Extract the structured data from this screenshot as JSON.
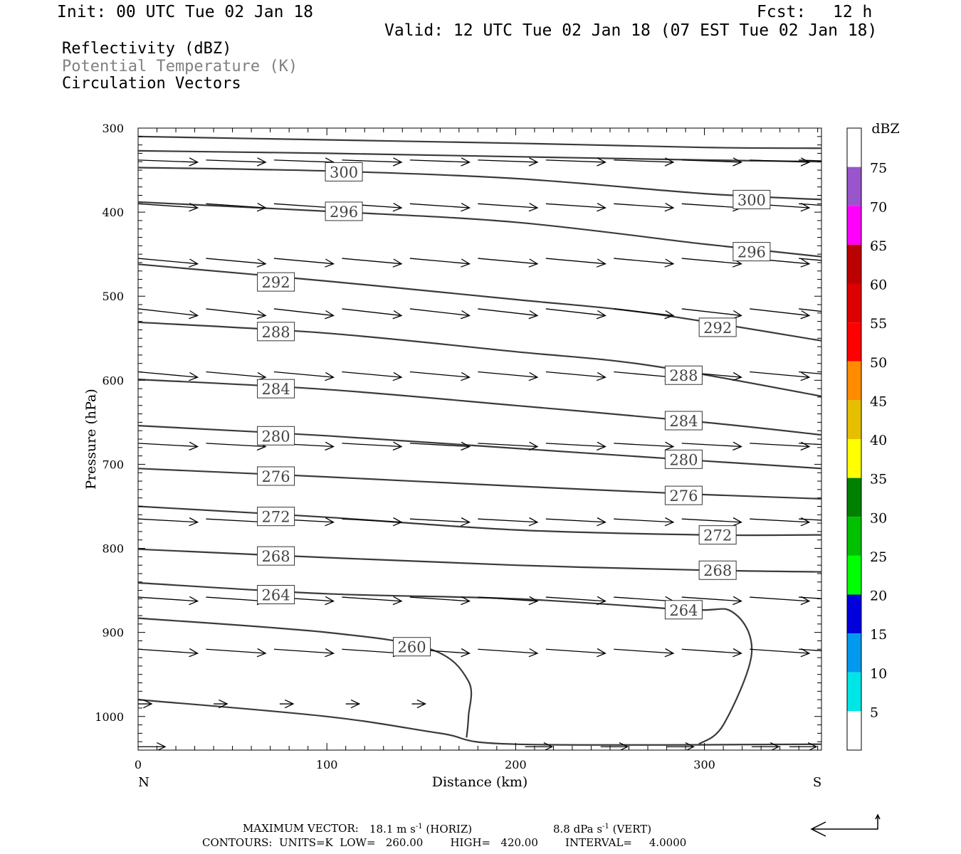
{
  "header": {
    "init": "Init: 00 UTC Tue 02 Jan 18",
    "fcst_label": "Fcst:",
    "fcst_value": "12 h",
    "valid": "Valid: 12 UTC Tue 02 Jan 18 (07 EST Tue 02 Jan 18)"
  },
  "legend": {
    "field1": "Reflectivity (dBZ)",
    "field2": "Potential Temperature (K)",
    "field3": "Circulation Vectors",
    "field2_color": "#808080"
  },
  "footer": {
    "max_vector_label": "MAXIMUM VECTOR:",
    "max_vector_horiz": "18.1 m s",
    "horiz_suffix": "(HORIZ)",
    "max_vector_vert": "8.8 dPa s",
    "vert_suffix": "(VERT)",
    "exponent": "-1",
    "contours": "CONTOURS:  UNITS=K  LOW=   260.00        HIGH=   420.00        INTERVAL=     4.0000"
  },
  "chart_data": {
    "type": "cross-section",
    "xlabel": "Distance (km)",
    "ylabel": "Pressure (hPa)",
    "xlim": [
      0,
      362
    ],
    "ylim": [
      1040,
      300
    ],
    "x_ticks": [
      0,
      100,
      200,
      300
    ],
    "y_ticks": [
      300,
      400,
      500,
      600,
      700,
      800,
      900,
      1000
    ],
    "left_end_label": "N",
    "right_end_label": "S",
    "colorbar": {
      "title": "dBZ",
      "levels": [
        5,
        10,
        15,
        20,
        25,
        30,
        35,
        40,
        45,
        50,
        55,
        60,
        65,
        70,
        75
      ],
      "colors": [
        "#ffffff",
        "#00e5e5",
        "#0099ee",
        "#0000dd",
        "#00ff00",
        "#00c000",
        "#008000",
        "#ffff00",
        "#e6bf00",
        "#ff8c00",
        "#ff0000",
        "#dd0000",
        "#bb0000",
        "#ff00ff",
        "#9955cc",
        "#ffffff"
      ]
    },
    "theta_contours": [
      {
        "value": 300,
        "points": [
          [
            0,
            310
          ],
          [
            100,
            314
          ],
          [
            200,
            318
          ],
          [
            300,
            323
          ],
          [
            362,
            324
          ]
        ]
      },
      {
        "value": 300,
        "points": [
          [
            0,
            327
          ],
          [
            100,
            330
          ],
          [
            200,
            334
          ],
          [
            300,
            338
          ],
          [
            362,
            340
          ]
        ]
      },
      {
        "value": 300,
        "label": "300",
        "label_at": [
          [
            109,
            352
          ],
          [
            325,
            385
          ]
        ],
        "points": [
          [
            0,
            347
          ],
          [
            100,
            351
          ],
          [
            200,
            360
          ],
          [
            300,
            378
          ],
          [
            362,
            385
          ]
        ]
      },
      {
        "value": 296,
        "label": "296",
        "label_at": [
          [
            109,
            399
          ],
          [
            325,
            447
          ]
        ],
        "points": [
          [
            0,
            388
          ],
          [
            100,
            399
          ],
          [
            200,
            412
          ],
          [
            300,
            438
          ],
          [
            362,
            453
          ]
        ]
      },
      {
        "value": 292,
        "label": "292",
        "label_at": [
          [
            73,
            483
          ],
          [
            307,
            537
          ]
        ],
        "points": [
          [
            0,
            462
          ],
          [
            100,
            482
          ],
          [
            200,
            504
          ],
          [
            270,
            520
          ],
          [
            362,
            553
          ]
        ]
      },
      {
        "value": 288,
        "label": "288",
        "label_at": [
          [
            73,
            542
          ],
          [
            289,
            594
          ]
        ],
        "points": [
          [
            0,
            531
          ],
          [
            100,
            544
          ],
          [
            200,
            566
          ],
          [
            270,
            582
          ],
          [
            362,
            619
          ]
        ]
      },
      {
        "value": 284,
        "label": "284",
        "label_at": [
          [
            73,
            610
          ],
          [
            289,
            648
          ]
        ],
        "points": [
          [
            0,
            599
          ],
          [
            100,
            611
          ],
          [
            200,
            630
          ],
          [
            300,
            650
          ],
          [
            362,
            665
          ]
        ]
      },
      {
        "value": 280,
        "label": "280",
        "label_at": [
          [
            73,
            666
          ],
          [
            289,
            694
          ]
        ],
        "points": [
          [
            0,
            654
          ],
          [
            100,
            666
          ],
          [
            200,
            681
          ],
          [
            300,
            696
          ],
          [
            362,
            705
          ]
        ]
      },
      {
        "value": 276,
        "label": "276",
        "label_at": [
          [
            73,
            714
          ],
          [
            289,
            737
          ]
        ],
        "points": [
          [
            0,
            705
          ],
          [
            100,
            715
          ],
          [
            200,
            726
          ],
          [
            300,
            736
          ],
          [
            362,
            741
          ]
        ]
      },
      {
        "value": 272,
        "label": "272",
        "label_at": [
          [
            73,
            762
          ],
          [
            307,
            784
          ]
        ],
        "points": [
          [
            0,
            750
          ],
          [
            100,
            763
          ],
          [
            200,
            778
          ],
          [
            300,
            784
          ],
          [
            362,
            784
          ]
        ]
      },
      {
        "value": 268,
        "label": "268",
        "label_at": [
          [
            73,
            809
          ],
          [
            307,
            826
          ]
        ],
        "points": [
          [
            0,
            801
          ],
          [
            100,
            811
          ],
          [
            200,
            820
          ],
          [
            300,
            826
          ],
          [
            362,
            828
          ]
        ]
      },
      {
        "value": 264,
        "label": "264",
        "label_at": [
          [
            73,
            855
          ],
          [
            289,
            873
          ]
        ],
        "points": [
          [
            0,
            841
          ],
          [
            100,
            854
          ],
          [
            200,
            860
          ],
          [
            290,
            873
          ],
          [
            315,
            876
          ],
          [
            325,
            925
          ],
          [
            310,
            1010
          ],
          [
            297,
            1033
          ]
        ]
      },
      {
        "value": 260,
        "label": "260",
        "label_at": [
          [
            145,
            917
          ]
        ],
        "points": [
          [
            0,
            883
          ],
          [
            100,
            900
          ],
          [
            155,
            920
          ],
          [
            175,
            958
          ],
          [
            175,
            1000
          ],
          [
            174,
            1025
          ]
        ]
      },
      {
        "value": 0,
        "points": [
          [
            0,
            980
          ],
          [
            100,
            1000
          ],
          [
            160,
            1020
          ],
          [
            200,
            1033
          ],
          [
            362,
            1033
          ]
        ]
      }
    ],
    "vectors": [
      {
        "p": 1036,
        "x": [
          0,
          205,
          245,
          280,
          325,
          345
        ],
        "u": 1.0,
        "w": 0.0
      },
      {
        "p": 985,
        "x": [
          0,
          40,
          75,
          110,
          145
        ],
        "u": 0.5,
        "w": 0.0
      },
      {
        "p": 920,
        "x": [
          0,
          36,
          72,
          108,
          144,
          180,
          216,
          252,
          288,
          324,
          350
        ],
        "u": 2.2,
        "w": 0.15
      },
      {
        "p": 858,
        "x": [
          0,
          36,
          72,
          108,
          144,
          180,
          216,
          252,
          288,
          324,
          350
        ],
        "u": 2.2,
        "w": 0.15
      },
      {
        "p": 765,
        "x": [
          0,
          36,
          72,
          108,
          144,
          180,
          216,
          252,
          288,
          324,
          350
        ],
        "u": 2.2,
        "w": 0.12
      },
      {
        "p": 675,
        "x": [
          0,
          36,
          72,
          108,
          144,
          180,
          216,
          252,
          288,
          324,
          350
        ],
        "u": 2.2,
        "w": 0.12
      },
      {
        "p": 590,
        "x": [
          0,
          36,
          72,
          108,
          144,
          180,
          216,
          252,
          288,
          324,
          350
        ],
        "u": 2.2,
        "w": 0.2
      },
      {
        "p": 515,
        "x": [
          0,
          36,
          72,
          108,
          144,
          180,
          216,
          252,
          288,
          324,
          350
        ],
        "u": 2.2,
        "w": 0.25
      },
      {
        "p": 455,
        "x": [
          0,
          36,
          72,
          108,
          144,
          180,
          216,
          252,
          288,
          324,
          350
        ],
        "u": 2.2,
        "w": 0.2
      },
      {
        "p": 390,
        "x": [
          0,
          36,
          72,
          108,
          144,
          180,
          216,
          252,
          288,
          324,
          350
        ],
        "u": 2.2,
        "w": 0.15
      },
      {
        "p": 338,
        "x": [
          0,
          36,
          72,
          108,
          144,
          180,
          216,
          252,
          288,
          324,
          350
        ],
        "u": 2.2,
        "w": 0.08
      }
    ],
    "reference_vector": {
      "direction": "left-up"
    }
  }
}
